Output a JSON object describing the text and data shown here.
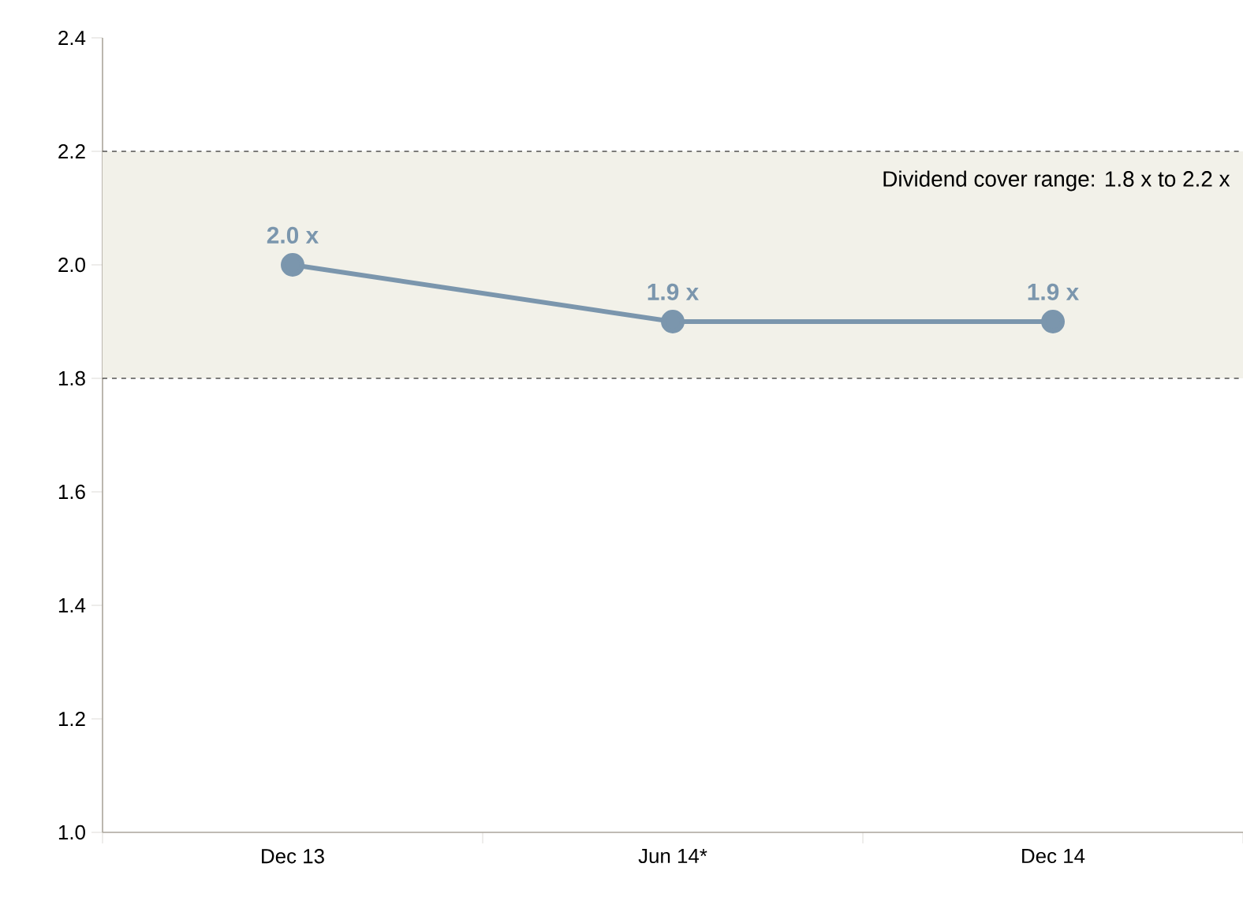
{
  "chart_data": {
    "type": "line",
    "categories": [
      "Dec 13",
      "Jun 14*",
      "Dec 14"
    ],
    "values": [
      2.0,
      1.9,
      1.9
    ],
    "value_labels": [
      "2.0 x",
      "1.9 x",
      "1.9 x"
    ],
    "color": "#7b96ad",
    "marker": "circle",
    "ylim": [
      1.0,
      2.4
    ],
    "yticks": [
      {
        "value": 1.0,
        "label": "1.0"
      },
      1.2,
      1.4,
      1.6,
      1.8,
      {
        "value": 2.0,
        "label": "2.0"
      },
      2.2,
      2.4
    ],
    "bands": [
      {
        "axis": "y",
        "from": 1.8,
        "to": 2.2,
        "label": "Dividend cover range: 1.8 x to 2.2 x",
        "color": "#f2f1e9"
      }
    ]
  }
}
